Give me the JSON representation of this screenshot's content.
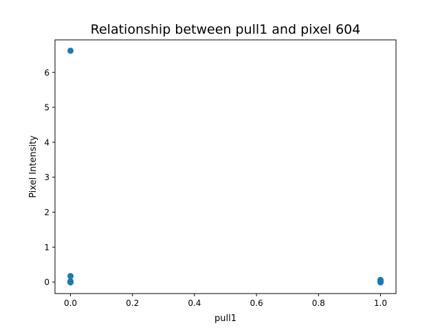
{
  "chart_data": {
    "type": "scatter",
    "title": "Relationship between pull1 and pixel 604",
    "xlabel": "pull1",
    "ylabel": "Pixel Intensity",
    "xlim": [
      -0.05,
      1.05
    ],
    "ylim": [
      -0.33,
      6.93
    ],
    "xticks": [
      0.0,
      0.2,
      0.4,
      0.6,
      0.8,
      1.0
    ],
    "xtick_labels": [
      "0.0",
      "0.2",
      "0.4",
      "0.6",
      "0.8",
      "1.0"
    ],
    "yticks": [
      0,
      1,
      2,
      3,
      4,
      5,
      6
    ],
    "ytick_labels": [
      "0",
      "1",
      "2",
      "3",
      "4",
      "5",
      "6"
    ],
    "grid": false,
    "legend": "none",
    "color": "#1f77b4",
    "points": [
      {
        "x": 0.0,
        "y": 6.62
      },
      {
        "x": 0.0,
        "y": 0.17
      },
      {
        "x": 0.0,
        "y": 0.02
      },
      {
        "x": 0.0,
        "y": 0.0
      },
      {
        "x": 0.0,
        "y": -0.01
      },
      {
        "x": 1.0,
        "y": 0.06
      },
      {
        "x": 1.0,
        "y": 0.04
      },
      {
        "x": 1.0,
        "y": 0.02
      },
      {
        "x": 1.0,
        "y": 0.0
      },
      {
        "x": 1.0,
        "y": -0.01
      }
    ]
  }
}
